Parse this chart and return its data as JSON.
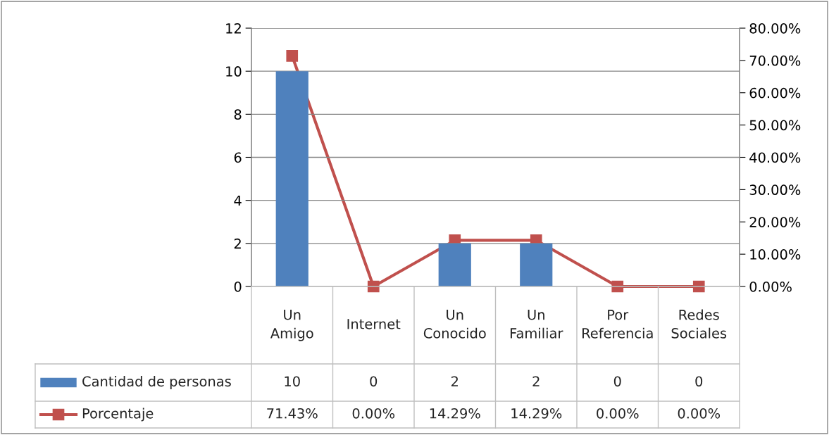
{
  "chart_data": {
    "type": "bar",
    "categories": [
      "Un Amigo",
      "Internet",
      "Un Conocido",
      "Un Familiar",
      "Por Referencia",
      "Redes Sociales"
    ],
    "series": [
      {
        "name": "Cantidad de personas",
        "color": "#4f81bd",
        "values": [
          10,
          0,
          2,
          2,
          0,
          0
        ],
        "value_labels": [
          "10",
          "0",
          "2",
          "2",
          "0",
          "0"
        ]
      },
      {
        "name": "Porcentaje",
        "type": "line",
        "axis": "y2",
        "color": "#c0504d",
        "marker": "square",
        "values": [
          71.43,
          0,
          14.29,
          14.29,
          0,
          0
        ],
        "value_labels": [
          "71.43%",
          "0.00%",
          "14.29%",
          "14.29%",
          "0.00%",
          "0.00%"
        ]
      }
    ],
    "ylim": [
      0,
      12
    ],
    "yticks": [
      0,
      2,
      4,
      6,
      8,
      10,
      12
    ],
    "y2lim": [
      0,
      80
    ],
    "y2ticks": [
      {
        "value": 0,
        "label": "0.00%"
      },
      {
        "value": 10,
        "label": "10.00%"
      },
      {
        "value": 20,
        "label": "20.00%"
      },
      {
        "value": 30,
        "label": "30.00%"
      },
      {
        "value": 40,
        "label": "40.00%"
      },
      {
        "value": 50,
        "label": "50.00%"
      },
      {
        "value": 60,
        "label": "60.00%"
      },
      {
        "value": 70,
        "label": "70.00%"
      },
      {
        "value": 80,
        "label": "80.00%"
      }
    ],
    "grid": "y",
    "legend": "bottom left"
  }
}
